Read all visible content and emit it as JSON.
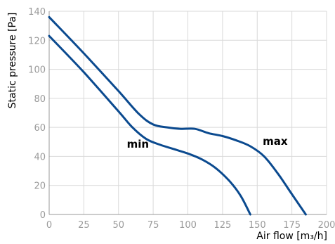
{
  "chart_data": {
    "type": "line",
    "title": "",
    "xlabel": "Air flow [m₃/h]",
    "ylabel": "Static pressure [Pa]",
    "xlim": [
      0,
      200
    ],
    "ylim": [
      0,
      140
    ],
    "xticks": [
      0,
      25,
      50,
      75,
      100,
      125,
      150,
      175,
      200
    ],
    "yticks": [
      0,
      20,
      40,
      60,
      80,
      100,
      120,
      140
    ],
    "grid": true,
    "line_color": "#0b4a8f",
    "series": [
      {
        "name": "max",
        "label_at": {
          "x": 154,
          "y": 45
        },
        "points": [
          [
            0,
            136
          ],
          [
            25,
            111
          ],
          [
            50,
            85
          ],
          [
            65,
            69
          ],
          [
            75,
            62
          ],
          [
            85,
            60
          ],
          [
            95,
            59
          ],
          [
            105,
            59
          ],
          [
            115,
            56
          ],
          [
            125,
            54
          ],
          [
            135,
            51
          ],
          [
            145,
            47
          ],
          [
            155,
            40
          ],
          [
            165,
            28
          ],
          [
            175,
            14
          ],
          [
            185,
            0
          ]
        ]
      },
      {
        "name": "min",
        "label_at": {
          "x": 56,
          "y": 43
        },
        "points": [
          [
            0,
            123
          ],
          [
            25,
            98
          ],
          [
            50,
            71
          ],
          [
            60,
            60
          ],
          [
            70,
            52
          ],
          [
            80,
            48
          ],
          [
            90,
            45
          ],
          [
            100,
            42
          ],
          [
            110,
            38
          ],
          [
            120,
            32
          ],
          [
            130,
            23
          ],
          [
            138,
            13
          ],
          [
            145,
            0
          ]
        ]
      }
    ]
  }
}
